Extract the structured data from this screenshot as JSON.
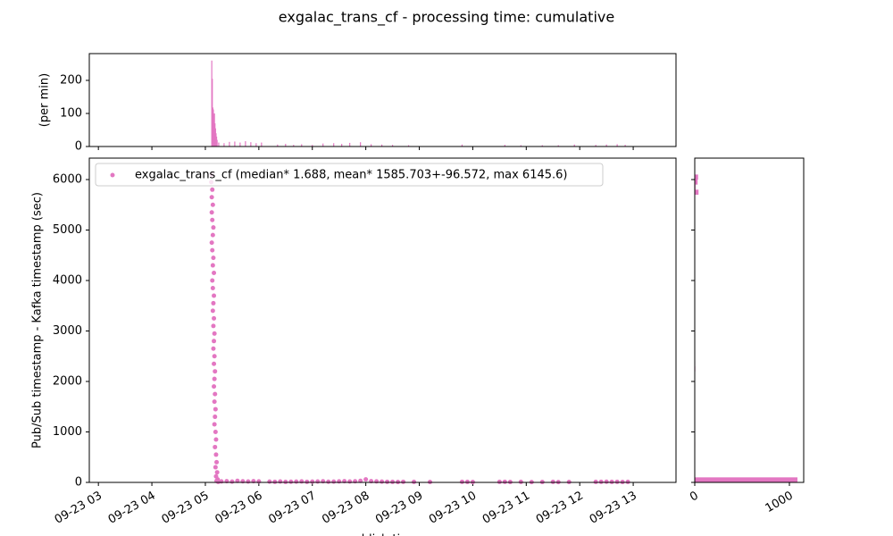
{
  "chart_data": [
    {
      "type": "bar",
      "title": "exgalac_trans_cf - processing time: cumulative",
      "ylabel": "(per min)",
      "color": "#e377c2",
      "x": [
        5.12,
        5.13,
        5.14,
        5.15,
        5.16,
        5.17,
        5.18,
        5.19,
        5.2,
        5.21,
        5.22,
        5.25,
        5.35,
        5.45,
        5.55,
        5.65,
        5.75,
        5.85,
        5.95,
        6.05,
        6.35,
        6.5,
        6.65,
        6.8,
        7.0,
        7.2,
        7.4,
        7.55,
        7.7,
        7.9,
        8.1,
        8.3,
        8.5,
        8.8,
        9.8,
        10.6,
        10.9,
        11.3,
        11.6,
        11.9,
        12.3,
        12.5,
        12.7,
        12.85
      ],
      "values": [
        260,
        205,
        118,
        112,
        95,
        100,
        70,
        55,
        40,
        30,
        20,
        12,
        10,
        14,
        15,
        12,
        16,
        13,
        10,
        12,
        6,
        8,
        5,
        7,
        5,
        9,
        10,
        8,
        11,
        13,
        7,
        6,
        5,
        4,
        6,
        5,
        4,
        4,
        4,
        6,
        5,
        6,
        7,
        5
      ],
      "xlim": [
        2.83,
        13.8
      ],
      "ylim": [
        0,
        281
      ],
      "yticks": [
        0,
        100,
        200
      ]
    },
    {
      "type": "scatter",
      "xlabel": "publish time",
      "ylabel": "Pub/Sub timestamp - Kafka timestamp (sec)",
      "series": [
        {
          "name": "exgalac_trans_cf (median* 1.688, mean* 1585.703+-96.572, max 6145.6)",
          "color": "#e377c2",
          "x": [
            5.12,
            5.11,
            5.13,
            5.12,
            5.14,
            5.12,
            5.13,
            5.15,
            5.14,
            5.12,
            5.13,
            5.15,
            5.14,
            5.16,
            5.13,
            5.14,
            5.16,
            5.15,
            5.14,
            5.16,
            5.15,
            5.17,
            5.16,
            5.15,
            5.17,
            5.16,
            5.18,
            5.17,
            5.16,
            5.18,
            5.17,
            5.19,
            5.18,
            5.17,
            5.19,
            5.2,
            5.18,
            5.2,
            5.21,
            5.19,
            5.22,
            5.2,
            5.23,
            5.21,
            5.24,
            5.3,
            5.4,
            5.5,
            5.6,
            5.7,
            5.8,
            5.9,
            6.0,
            6.2,
            6.3,
            6.4,
            6.5,
            6.6,
            6.7,
            6.8,
            6.9,
            7.0,
            7.1,
            7.2,
            7.3,
            7.4,
            7.5,
            7.6,
            7.7,
            7.8,
            7.9,
            8.0,
            8.1,
            8.2,
            8.3,
            8.4,
            8.5,
            8.6,
            8.7,
            8.9,
            9.2,
            9.8,
            9.9,
            10.0,
            10.5,
            10.6,
            10.7,
            10.9,
            11.1,
            11.3,
            11.5,
            11.6,
            11.8,
            12.3,
            12.4,
            12.5,
            12.6,
            12.7,
            12.8,
            12.9
          ],
          "values": [
            6100,
            5950,
            5800,
            5650,
            5500,
            5350,
            5200,
            5050,
            4900,
            4750,
            4600,
            4450,
            4300,
            4150,
            4000,
            3850,
            3700,
            3550,
            3400,
            3250,
            3100,
            2950,
            2800,
            2650,
            2500,
            2350,
            2200,
            2050,
            1900,
            1750,
            1600,
            1450,
            1300,
            1150,
            1000,
            850,
            700,
            550,
            400,
            300,
            200,
            120,
            60,
            30,
            10,
            20,
            25,
            15,
            30,
            22,
            18,
            25,
            20,
            15,
            12,
            18,
            10,
            14,
            16,
            20,
            12,
            15,
            18,
            22,
            14,
            16,
            20,
            25,
            18,
            22,
            30,
            60,
            25,
            20,
            15,
            12,
            10,
            8,
            12,
            10,
            8,
            12,
            10,
            8,
            10,
            12,
            8,
            10,
            6,
            8,
            10,
            6,
            8,
            10,
            12,
            14,
            10,
            12,
            8,
            10
          ]
        }
      ],
      "xlim": [
        2.83,
        13.8
      ],
      "ylim": [
        0,
        6425
      ],
      "xticks": [
        {
          "value": 3,
          "label": "09-23 03"
        },
        {
          "value": 4,
          "label": "09-23 04"
        },
        {
          "value": 5,
          "label": "09-23 05"
        },
        {
          "value": 6,
          "label": "09-23 06"
        },
        {
          "value": 7,
          "label": "09-23 07"
        },
        {
          "value": 8,
          "label": "09-23 08"
        },
        {
          "value": 9,
          "label": "09-23 09"
        },
        {
          "value": 10,
          "label": "09-23 10"
        },
        {
          "value": 11,
          "label": "09-23 11"
        },
        {
          "value": 12,
          "label": "09-23 12"
        },
        {
          "value": 13,
          "label": "09-23 13"
        }
      ],
      "yticks": [
        0,
        1000,
        2000,
        3000,
        4000,
        5000,
        6000
      ]
    },
    {
      "type": "histogram",
      "orientation": "horizontal",
      "color": "#e377c2",
      "bins": [
        0,
        100,
        200,
        300,
        400,
        500,
        600,
        700,
        800,
        900,
        1000,
        1100,
        1200,
        1300,
        1400,
        1500,
        1600,
        1700,
        1800,
        1900,
        2000,
        2100,
        2200,
        2300,
        2400,
        2500,
        2600,
        2700,
        2800,
        2900,
        3000,
        3100,
        3200,
        3300,
        3400,
        3500,
        3600,
        3700,
        3800,
        3900,
        4000,
        4100,
        4200,
        4300,
        4400,
        4500,
        4600,
        4700,
        4800,
        4900,
        5000,
        5100,
        5200,
        5300,
        5400,
        5500,
        5600,
        5700,
        5800,
        5900,
        6000,
        6100,
        6200
      ],
      "values": [
        1085,
        3,
        2,
        2,
        2,
        2,
        2,
        5,
        4,
        2,
        2,
        2,
        2,
        2,
        2,
        2,
        2,
        2,
        2,
        2,
        2,
        2,
        6,
        5,
        2,
        2,
        2,
        2,
        2,
        2,
        2,
        2,
        2,
        2,
        2,
        2,
        2,
        2,
        2,
        2,
        2,
        2,
        2,
        2,
        2,
        2,
        2,
        2,
        2,
        2,
        2,
        2,
        2,
        2,
        2,
        2,
        2,
        40,
        8,
        30,
        35,
        4
      ],
      "xlim": [
        0,
        1151
      ],
      "xticks": [
        0,
        1000
      ]
    }
  ]
}
